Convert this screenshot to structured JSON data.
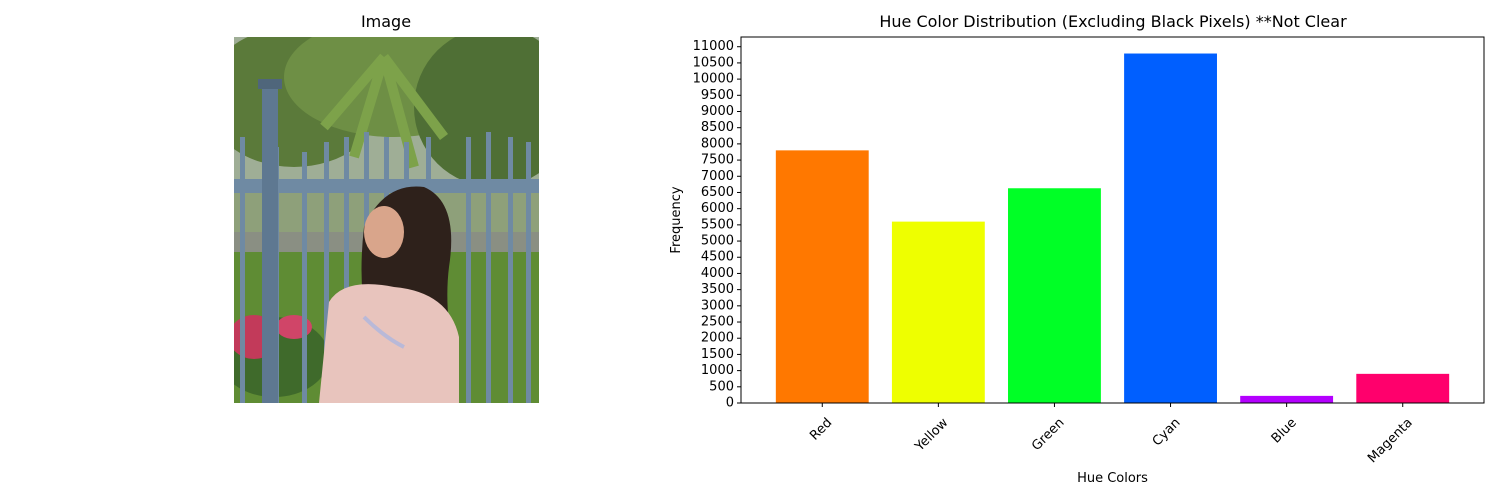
{
  "image_panel": {
    "title": "Image"
  },
  "chart_data": {
    "type": "bar",
    "title": "Hue Color Distribution (Excluding Black Pixels) **Not Clear",
    "xlabel": "Hue Colors",
    "ylabel": "Frequency",
    "categories": [
      "Red",
      "Yellow",
      "Green",
      "Cyan",
      "Blue",
      "Magenta"
    ],
    "values": [
      7800,
      5600,
      6630,
      10790,
      220,
      900
    ],
    "colors": [
      "#ff7800",
      "#eeff00",
      "#00ff26",
      "#005fff",
      "#b400ff",
      "#ff006c"
    ],
    "ylim": [
      0,
      11300
    ],
    "yticks": [
      0,
      500,
      1000,
      1500,
      2000,
      2500,
      3000,
      3500,
      4000,
      4500,
      5000,
      5500,
      6000,
      6500,
      7000,
      7500,
      8000,
      8500,
      9000,
      9500,
      10000,
      10500,
      11000
    ],
    "grid": false,
    "legend": "none"
  }
}
